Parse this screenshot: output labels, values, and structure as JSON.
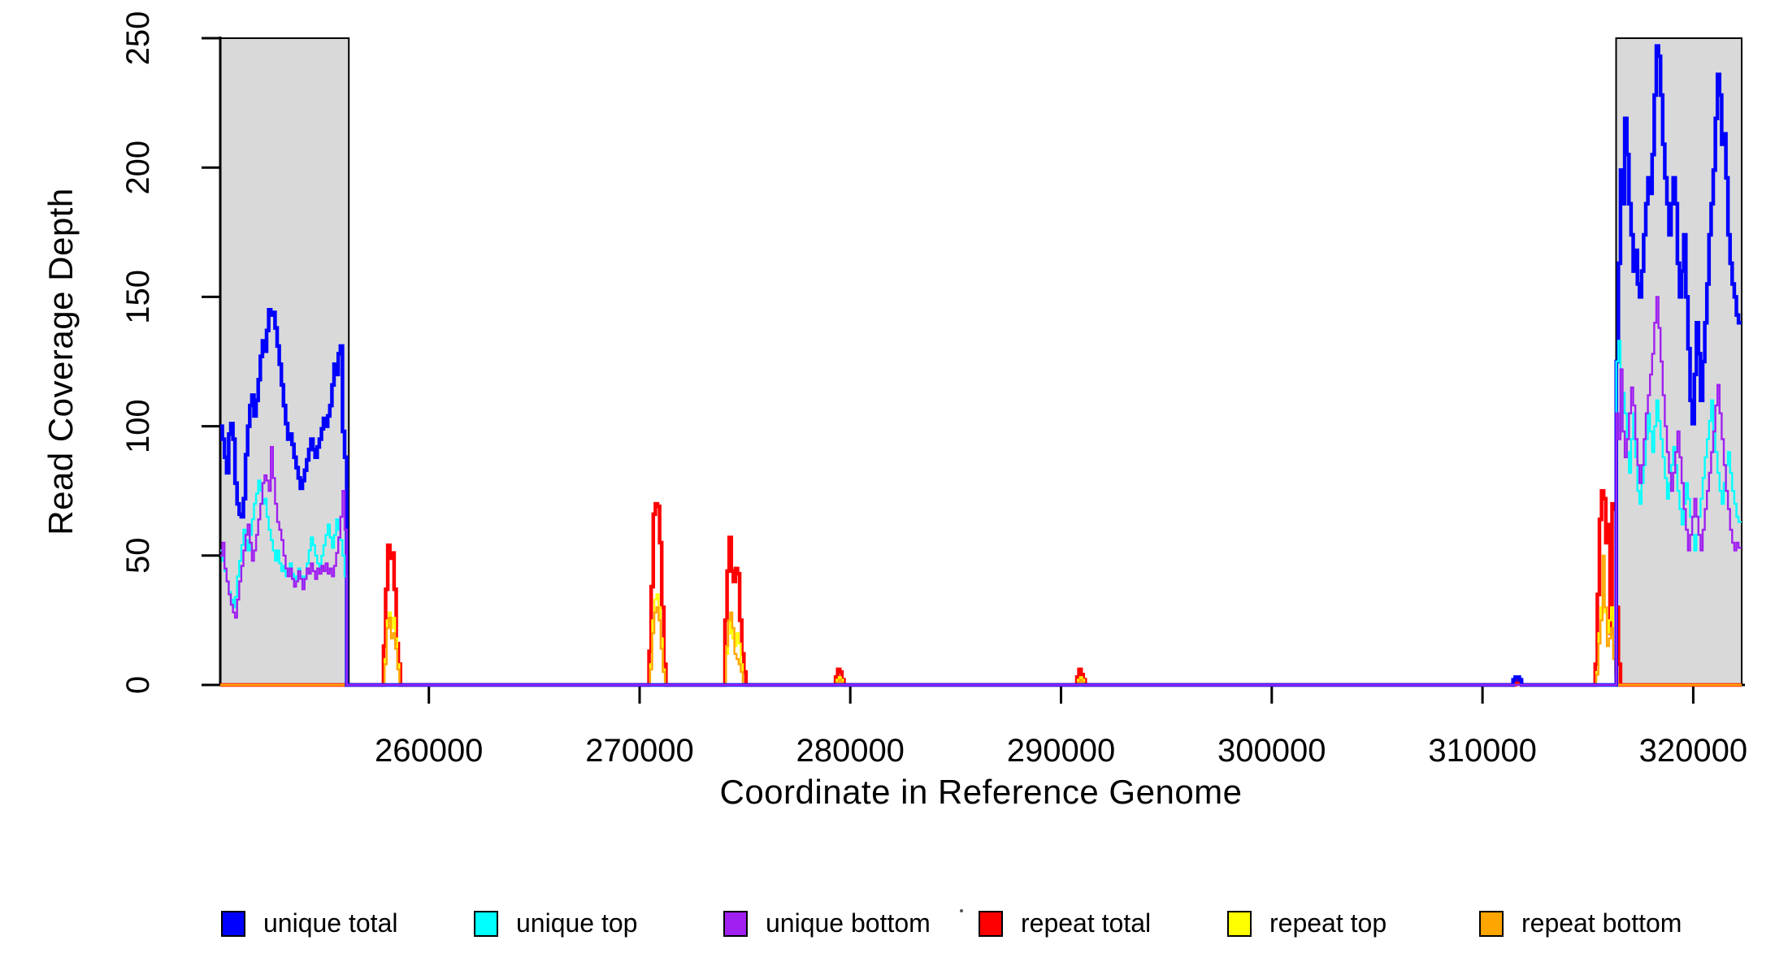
{
  "chart_data": {
    "type": "line",
    "subtype": "step-coverage",
    "title": "",
    "xlabel": "Coordinate in Reference Genome",
    "ylabel": "Read Coverage Depth",
    "xlim": [
      250100,
      322300
    ],
    "ylim": [
      0,
      250
    ],
    "grid": false,
    "legend_position": "bottom",
    "x_ticks": [
      {
        "value": 260000,
        "label": "260000"
      },
      {
        "value": 270000,
        "label": "270000"
      },
      {
        "value": 280000,
        "label": "280000"
      },
      {
        "value": 290000,
        "label": "290000"
      },
      {
        "value": 300000,
        "label": "300000"
      },
      {
        "value": 310000,
        "label": "310000"
      },
      {
        "value": 320000,
        "label": "320000"
      }
    ],
    "y_ticks": [
      {
        "value": 0,
        "label": "0"
      },
      {
        "value": 50,
        "label": "50"
      },
      {
        "value": 100,
        "label": "100"
      },
      {
        "value": 150,
        "label": "150"
      },
      {
        "value": 200,
        "label": "200"
      },
      {
        "value": 250,
        "label": "250"
      }
    ],
    "colors": {
      "shade": "#D9D9D9",
      "axis": "#000000",
      "background": "#FFFFFF"
    },
    "shaded_regions": [
      {
        "from": 250100,
        "to": 256200
      },
      {
        "from": 316340,
        "to": 322300
      }
    ],
    "legend": [
      {
        "label": "unique total",
        "color": "#0000FF"
      },
      {
        "label": "unique top",
        "color": "#00FFFF"
      },
      {
        "label": "unique bottom",
        "color": "#A020F0"
      },
      {
        "label": "repeat total",
        "color": "#FF0000"
      },
      {
        "label": "repeat top",
        "color": "#FFFF00"
      },
      {
        "label": "repeat bottom",
        "color": "#FFA500"
      }
    ],
    "draw_order": [
      "repeat total",
      "repeat top",
      "repeat bottom",
      "unique total",
      "unique top",
      "unique bottom"
    ],
    "series": [
      {
        "name": "unique total",
        "color": "#0000FF",
        "lwd": 4.5,
        "segments": [
          {
            "start": 250100,
            "step": 100,
            "values": [
              100,
              95,
              88,
              82,
              97,
              101,
              95,
              78,
              70,
              66,
              65,
              72,
              89,
              100,
              108,
              112,
              104,
              110,
              118,
              127,
              133,
              129,
              137,
              145,
              143,
              144,
              138,
              131,
              124,
              116,
              108,
              101,
              95,
              97,
              93,
              88,
              84,
              80,
              76,
              79,
              83,
              87,
              91,
              95,
              91,
              88,
              92,
              95,
              99,
              103,
              100,
              104,
              108,
              116,
              124,
              120,
              128,
              131,
              98,
              88
            ]
          },
          {
            "start": 311450,
            "step": 100,
            "values": [
              2,
              3,
              3,
              2
            ]
          },
          {
            "start": 316350,
            "step": 100,
            "values": [
              125,
              163,
              199,
              186,
              219,
              205,
              186,
              174,
              160,
              168,
              155,
              150,
              160,
              174,
              186,
              196,
              190,
              205,
              228,
              247,
              243,
              228,
              209,
              196,
              186,
              174,
              186,
              196,
              186,
              163,
              150,
              160,
              174,
              150,
              130,
              110,
              101,
              120,
              140,
              128,
              110,
              125,
              140,
              155,
              174,
              186,
              199,
              219,
              236,
              228,
              209,
              213,
              196,
              174,
              163,
              155,
              150,
              143,
              140
            ]
          }
        ]
      },
      {
        "name": "unique top",
        "color": "#00FFFF",
        "lwd": 2.4,
        "segments": [
          {
            "start": 250100,
            "step": 100,
            "values": [
              52,
              48,
              44,
              40,
              36,
              33,
              30,
              34,
              42,
              48,
              54,
              60,
              56,
              52,
              58,
              64,
              70,
              74,
              79,
              75,
              70,
              72,
              65,
              60,
              56,
              52,
              48,
              52,
              47,
              44,
              46,
              42,
              44,
              47,
              43,
              40,
              42,
              45,
              42,
              38,
              42,
              47,
              52,
              57,
              54,
              50,
              47,
              45,
              50,
              54,
              58,
              62,
              57,
              53,
              58,
              64,
              60,
              56,
              50,
              42
            ]
          },
          {
            "start": 316350,
            "step": 100,
            "values": [
              125,
              133,
              98,
              113,
              105,
              90,
              82,
              95,
              105,
              88,
              75,
              70,
              78,
              85,
              95,
              105,
              98,
              90,
              100,
              110,
              102,
              95,
              88,
              80,
              72,
              78,
              85,
              92,
              85,
              75,
              68,
              62,
              70,
              78,
              72,
              65,
              58,
              52,
              58,
              65,
              72,
              80,
              88,
              95,
              102,
              110,
              98,
              90,
              82,
              75,
              70,
              78,
              85,
              90,
              82,
              75,
              70,
              65,
              63
            ]
          }
        ]
      },
      {
        "name": "unique bottom",
        "color": "#A020F0",
        "lwd": 2.4,
        "segments": [
          {
            "start": 250100,
            "step": 100,
            "values": [
              50,
              55,
              45,
              40,
              35,
              31,
              28,
              26,
              33,
              40,
              46,
              52,
              58,
              62,
              55,
              48,
              52,
              58,
              64,
              70,
              78,
              81,
              79,
              75,
              92,
              80,
              70,
              63,
              60,
              56,
              50,
              45,
              42,
              45,
              41,
              38,
              40,
              44,
              41,
              37,
              41,
              45,
              43,
              47,
              44,
              41,
              45,
              43,
              46,
              44,
              47,
              43,
              45,
              42,
              46,
              51,
              57,
              65,
              75,
              60
            ]
          },
          {
            "start": 316350,
            "step": 100,
            "values": [
              105,
              95,
              122,
              98,
              88,
              95,
              105,
              115,
              108,
              95,
              85,
              78,
              85,
              95,
              105,
              112,
              120,
              128,
              140,
              150,
              138,
              125,
              112,
              100,
              90,
              82,
              75,
              82,
              90,
              98,
              88,
              78,
              68,
              60,
              52,
              58,
              65,
              72,
              65,
              58,
              52,
              60,
              68,
              75,
              82,
              90,
              98,
              108,
              116,
              105,
              95,
              85,
              75,
              68,
              60,
              55,
              52,
              55,
              53
            ]
          }
        ]
      },
      {
        "name": "repeat total",
        "color": "#FF0000",
        "lwd": 4.5,
        "segments": [
          {
            "start": 257850,
            "step": 100,
            "values": [
              15,
              37,
              54,
              49,
              51,
              37,
              16,
              8
            ]
          },
          {
            "start": 270450,
            "step": 100,
            "values": [
              13,
              38,
              66,
              70,
              69,
              55,
              30,
              8
            ]
          },
          {
            "start": 274050,
            "step": 100,
            "values": [
              25,
              44,
              57,
              44,
              40,
              45,
              43,
              25,
              12,
              5
            ]
          },
          {
            "start": 279300,
            "step": 100,
            "values": [
              3,
              6,
              5,
              2
            ]
          },
          {
            "start": 290750,
            "step": 100,
            "values": [
              3,
              6,
              4,
              2
            ]
          },
          {
            "start": 311550,
            "step": 100,
            "values": [
              1,
              2,
              1
            ]
          },
          {
            "start": 315350,
            "step": 100,
            "values": [
              8,
              35,
              64,
              75,
              72,
              55,
              62,
              20,
              70,
              68,
              30,
              8
            ]
          }
        ]
      },
      {
        "name": "repeat top",
        "color": "#FFFF00",
        "lwd": 2.4,
        "segments": [
          {
            "start": 257900,
            "step": 100,
            "values": [
              10,
              25,
              28,
              22,
              26,
              18,
              8
            ]
          },
          {
            "start": 270500,
            "step": 100,
            "values": [
              8,
              25,
              33,
              35,
              30,
              18,
              6
            ]
          },
          {
            "start": 274100,
            "step": 100,
            "values": [
              12,
              20,
              25,
              18,
              15,
              20,
              16,
              8
            ]
          },
          {
            "start": 279350,
            "step": 100,
            "values": [
              2,
              3,
              2
            ]
          },
          {
            "start": 290800,
            "step": 100,
            "values": [
              2,
              3,
              2
            ]
          },
          {
            "start": 315400,
            "step": 100,
            "values": [
              5,
              20,
              30,
              35,
              28,
              20,
              25,
              30,
              15,
              5
            ]
          }
        ]
      },
      {
        "name": "repeat bottom",
        "color": "#FFA500",
        "lwd": 2.4,
        "segments": [
          {
            "start": 257900,
            "step": 100,
            "values": [
              8,
              22,
              26,
              18,
              20,
              14,
              6
            ]
          },
          {
            "start": 270500,
            "step": 100,
            "values": [
              6,
              20,
              28,
              30,
              25,
              14,
              5
            ]
          },
          {
            "start": 274100,
            "step": 100,
            "values": [
              15,
              25,
              28,
              22,
              12,
              10,
              8,
              5
            ]
          },
          {
            "start": 279350,
            "step": 100,
            "values": [
              1,
              2,
              1
            ]
          },
          {
            "start": 290800,
            "step": 100,
            "values": [
              1,
              2,
              1
            ]
          },
          {
            "start": 315400,
            "step": 100,
            "values": [
              4,
              16,
              25,
              50,
              30,
              15,
              18,
              22,
              10,
              4
            ]
          }
        ]
      }
    ]
  }
}
